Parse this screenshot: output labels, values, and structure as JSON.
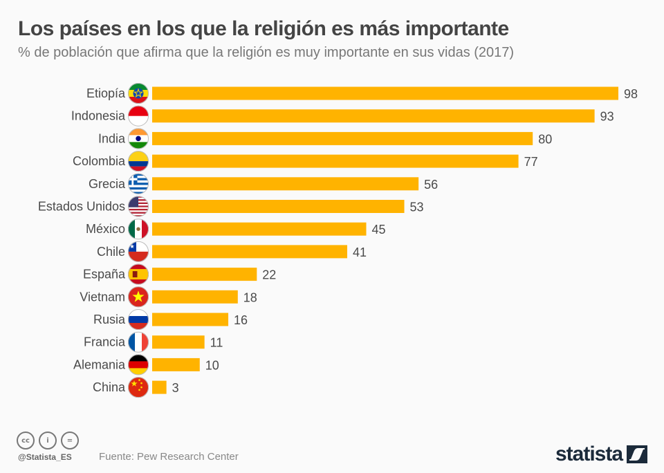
{
  "header": {
    "title": "Los países en los que la religión es más importante",
    "subtitle": "% de población que afirma que la religión es muy importante en sus vidas (2017)"
  },
  "chart_data": {
    "type": "bar",
    "orientation": "horizontal",
    "title": "Los países en los que la religión es más importante",
    "subtitle": "% de población que afirma que la religión es muy importante en sus vidas (2017)",
    "xlabel": "",
    "ylabel": "",
    "xlim": [
      0,
      100
    ],
    "grid": false,
    "bar_color": "#ffb300",
    "categories": [
      "Etiopía",
      "Indonesia",
      "India",
      "Colombia",
      "Grecia",
      "Estados Unidos",
      "México",
      "Chile",
      "España",
      "Vietnam",
      "Rusia",
      "Francia",
      "Alemania",
      "China"
    ],
    "values": [
      98,
      93,
      80,
      77,
      56,
      53,
      45,
      41,
      22,
      18,
      16,
      11,
      10,
      3
    ],
    "flags": [
      "ethiopia-flag",
      "indonesia-flag",
      "india-flag",
      "colombia-flag",
      "greece-flag",
      "usa-flag",
      "mexico-flag",
      "chile-flag",
      "spain-flag",
      "vietnam-flag",
      "russia-flag",
      "france-flag",
      "germany-flag",
      "china-flag"
    ]
  },
  "footer": {
    "license_icons": [
      "cc-icon",
      "by-icon",
      "nd-icon"
    ],
    "license_labels": [
      "cc",
      "i",
      "="
    ],
    "handle": "@Statista_ES",
    "source": "Fuente: Pew Research Center",
    "brand": "statista"
  }
}
